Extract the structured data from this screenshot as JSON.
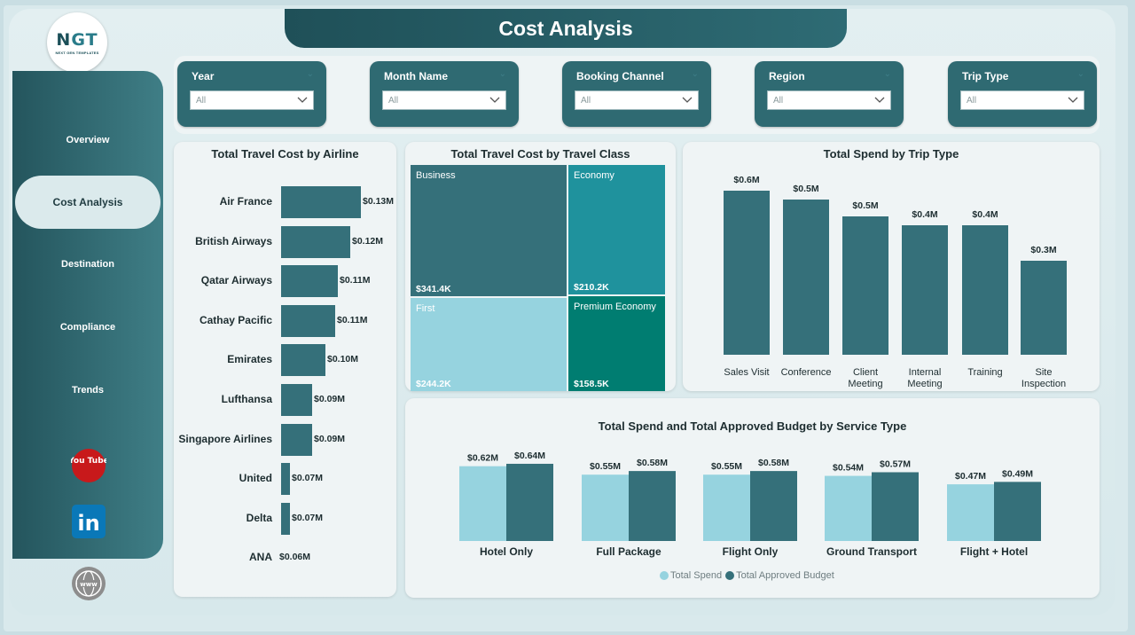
{
  "logo": {
    "mark_a": "N",
    "mark_b": "GT",
    "subtitle": "NEXT GEN TEMPLATES"
  },
  "header": {
    "title": "Cost Analysis"
  },
  "sidebar": {
    "items": [
      {
        "label": "Overview",
        "active": false
      },
      {
        "label": "Cost Analysis",
        "active": true
      },
      {
        "label": "Destination",
        "active": false
      },
      {
        "label": "Compliance",
        "active": false
      },
      {
        "label": "Trends",
        "active": false
      }
    ],
    "social": [
      {
        "name": "youtube-icon",
        "label": "You Tube"
      },
      {
        "name": "linkedin-icon",
        "label": "in"
      },
      {
        "name": "website-icon",
        "label": "www"
      }
    ]
  },
  "filters": [
    {
      "label": "Year",
      "value": "All"
    },
    {
      "label": "Month Name",
      "value": "All"
    },
    {
      "label": "Booking Channel",
      "value": "All"
    },
    {
      "label": "Region",
      "value": "All"
    },
    {
      "label": "Trip Type",
      "value": "All"
    }
  ],
  "colors": {
    "accent_dark": "#35707a",
    "accent_light": "#96d3df",
    "business": "#35707a",
    "economy": "#1f929d",
    "first": "#96d3df",
    "premium_economy": "#007d71"
  },
  "chart_data": [
    {
      "type": "bar",
      "orientation": "horizontal",
      "title": "Total Travel Cost by Airline",
      "categories": [
        "Air France",
        "British Airways",
        "Qatar Airways",
        "Cathay Pacific",
        "Emirates",
        "Lufthansa",
        "Singapore Airlines",
        "United",
        "Delta",
        "ANA"
      ],
      "values": [
        0.13,
        0.12,
        0.11,
        0.11,
        0.1,
        0.09,
        0.09,
        0.07,
        0.07,
        0.06
      ],
      "labels": [
        "$0.13M",
        "$0.12M",
        "$0.11M",
        "$0.11M",
        "$0.10M",
        "$0.09M",
        "$0.09M",
        "$0.07M",
        "$0.07M",
        "$0.06M"
      ],
      "units": "$M"
    },
    {
      "type": "treemap",
      "title": "Total Travel Cost by Travel Class",
      "categories": [
        "Business",
        "Economy",
        "First",
        "Premium Economy"
      ],
      "values": [
        341.4,
        210.2,
        244.2,
        158.5
      ],
      "labels": [
        "$341.4K",
        "$210.2K",
        "$244.2K",
        "$158.5K"
      ],
      "units": "$K"
    },
    {
      "type": "bar",
      "title": "Total Spend by Trip Type",
      "categories": [
        "Sales Visit",
        "Conference",
        "Client Meeting",
        "Internal Meeting",
        "Training",
        "Site Inspection"
      ],
      "values": [
        0.6,
        0.5,
        0.5,
        0.4,
        0.4,
        0.3
      ],
      "labels": [
        "$0.6M",
        "$0.5M",
        "$0.5M",
        "$0.4M",
        "$0.4M",
        "$0.3M"
      ],
      "units": "$M"
    },
    {
      "type": "bar",
      "title": "Total Spend and Total Approved Budget by Service Type",
      "categories": [
        "Hotel Only",
        "Full Package",
        "Flight Only",
        "Ground Transport",
        "Flight + Hotel"
      ],
      "series": [
        {
          "name": "Total Spend",
          "values": [
            0.62,
            0.55,
            0.55,
            0.54,
            0.47
          ],
          "labels": [
            "$0.62M",
            "$0.55M",
            "$0.55M",
            "$0.54M",
            "$0.47M"
          ]
        },
        {
          "name": "Total Approved Budget",
          "values": [
            0.64,
            0.58,
            0.58,
            0.57,
            0.49
          ],
          "labels": [
            "$0.64M",
            "$0.58M",
            "$0.58M",
            "$0.57M",
            "$0.49M"
          ]
        }
      ],
      "legend": "bottom",
      "units": "$M"
    }
  ]
}
